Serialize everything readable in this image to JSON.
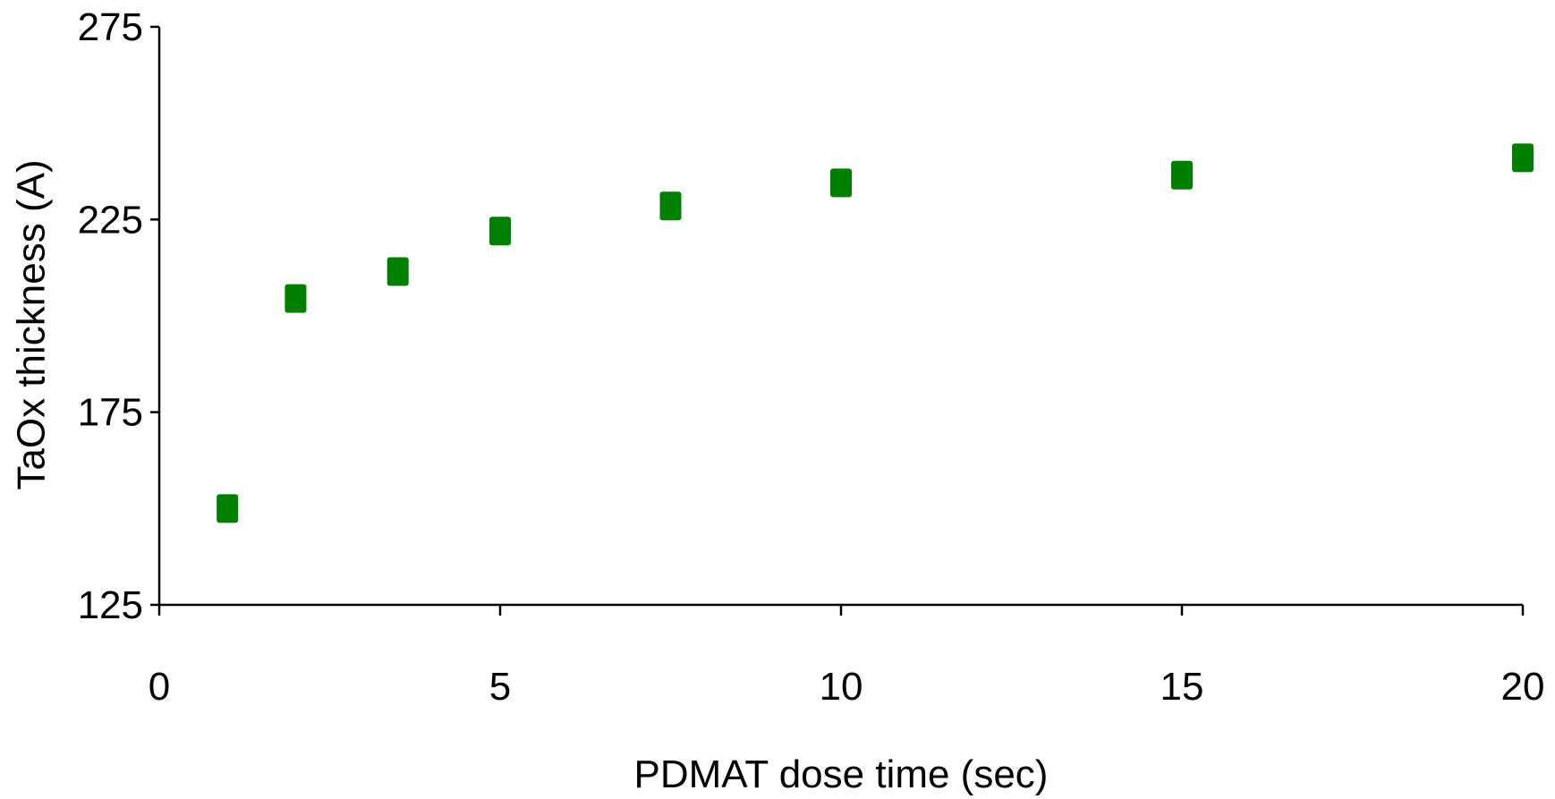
{
  "chart_data": {
    "type": "scatter",
    "title": "",
    "xlabel": "PDMAT dose time (sec)",
    "ylabel": "TaOx thickness (A)",
    "xlim": [
      0,
      20
    ],
    "ylim": [
      125,
      275
    ],
    "xticks": [
      0,
      5,
      10,
      15,
      20
    ],
    "yticks": [
      125,
      175,
      225,
      275
    ],
    "grid": false,
    "legend": "none",
    "marker": "square",
    "marker_color": "#008000",
    "series": [
      {
        "x": [
          1,
          2,
          3.5,
          5,
          7.5,
          10,
          15,
          20
        ],
        "y": [
          150,
          204.5,
          211.5,
          222,
          228.5,
          234.5,
          236.5,
          241
        ]
      }
    ]
  }
}
